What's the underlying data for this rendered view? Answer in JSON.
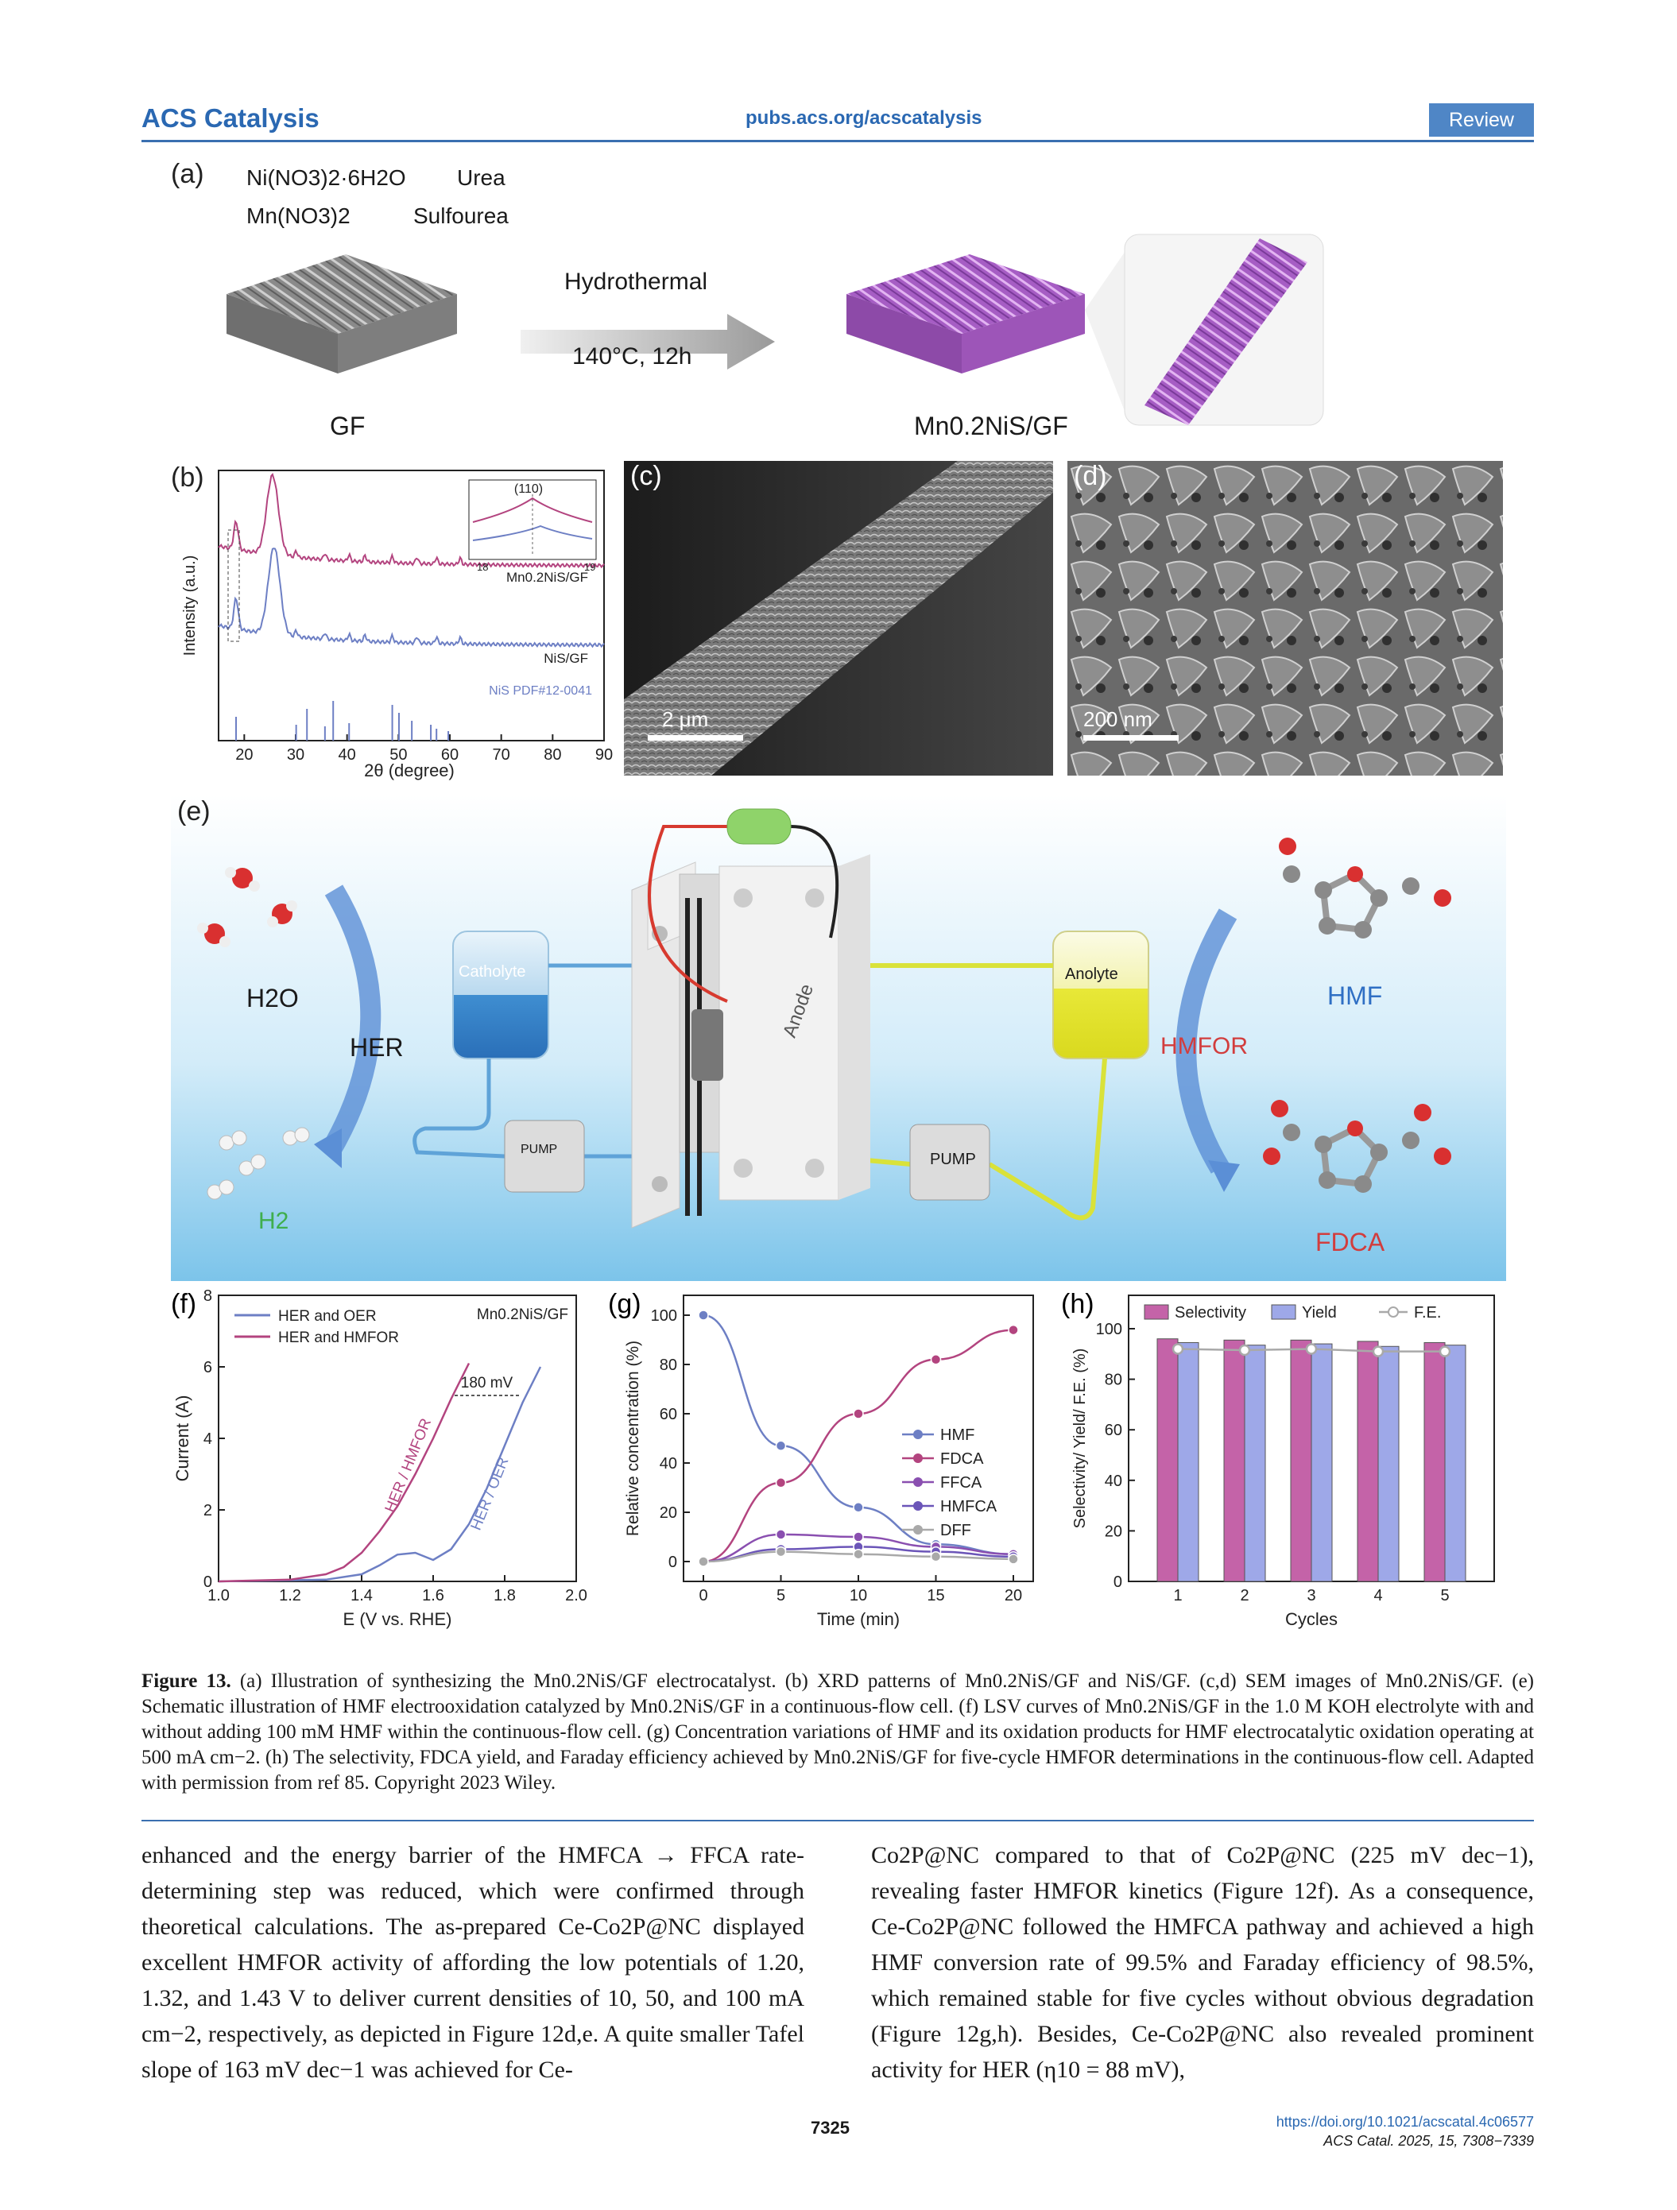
{
  "header": {
    "journal": "ACS Catalysis",
    "url": "pubs.acs.org/acscatalysis",
    "section": "Review"
  },
  "figure": {
    "panel_a": {
      "label": "(a)",
      "reagent_1": "Ni(NO3)2·6H2O",
      "reagent_2": "Mn(NO3)2",
      "reagent_3": "Urea",
      "reagent_4": "Sulfourea",
      "process": "Hydrothermal",
      "conditions": "140°C, 12h",
      "left_label": "GF",
      "right_label": "Mn0.2NiS/GF"
    },
    "panel_b": {
      "label": "(b)",
      "inset_peak": "(110)",
      "inset_tick_left": "18",
      "inset_tick_right": "19",
      "trace_1": "Mn0.2NiS/GF",
      "trace_2": "NiS/GF",
      "reference": "NiS PDF#12-0041"
    },
    "panel_c": {
      "label": "(c)",
      "scale": "2 μm"
    },
    "panel_d": {
      "label": "(d)",
      "scale": "200 nm"
    },
    "panel_e": {
      "label": "(e)",
      "h2o": "H2O",
      "her": "HER",
      "h2": "H2",
      "catholyte": "Catholyte",
      "pump": "PUMP",
      "anode": "Anode",
      "anolyte": "Anolyte",
      "hmfor": "HMFOR",
      "hmf": "HMF",
      "fdca": "FDCA"
    }
  },
  "chart_data": [
    {
      "id": "b",
      "type": "line",
      "xlabel": "2θ (degree)",
      "ylabel": "Intensity (a.u.)",
      "xlim": [
        15,
        90
      ],
      "xticks": [
        20,
        30,
        40,
        50,
        60,
        70,
        80,
        90
      ],
      "series": [
        {
          "name": "Mn0.2NiS/GF",
          "color": "#b3447f"
        },
        {
          "name": "NiS/GF",
          "color": "#6d7fc4"
        }
      ],
      "reference_peaks": [
        18.4,
        30.1,
        32.2,
        35.7,
        37.3,
        40.4,
        48.8,
        50.1,
        52.6,
        56.3,
        57.4,
        59.7
      ]
    },
    {
      "id": "f",
      "type": "line",
      "title": "Mn0.2NiS/GF",
      "xlabel": "E (V vs. RHE)",
      "ylabel": "Current (A)",
      "xlim": [
        1.0,
        2.0
      ],
      "ylim": [
        0,
        8
      ],
      "xticks": [
        1.0,
        1.2,
        1.4,
        1.6,
        1.8,
        2.0
      ],
      "yticks": [
        0,
        2,
        4,
        6,
        8
      ],
      "annotation": "180 mV",
      "series": [
        {
          "name": "HER and OER",
          "label": "HER / OER",
          "color": "#6d7fc4",
          "x": [
            1.0,
            1.3,
            1.4,
            1.45,
            1.5,
            1.55,
            1.6,
            1.65,
            1.7,
            1.75,
            1.8,
            1.85,
            1.9
          ],
          "y": [
            0.0,
            0.05,
            0.2,
            0.45,
            0.75,
            0.8,
            0.6,
            0.9,
            1.6,
            2.6,
            3.8,
            5.0,
            6.0
          ]
        },
        {
          "name": "HER and HMFOR",
          "label": "HER / HMFOR",
          "color": "#b3447f",
          "x": [
            1.0,
            1.2,
            1.3,
            1.35,
            1.4,
            1.45,
            1.5,
            1.55,
            1.6,
            1.65,
            1.7
          ],
          "y": [
            0.0,
            0.05,
            0.2,
            0.4,
            0.8,
            1.4,
            2.1,
            3.0,
            4.0,
            5.1,
            6.1
          ]
        }
      ]
    },
    {
      "id": "g",
      "type": "line",
      "xlabel": "Time (min)",
      "ylabel": "Relative concentration (%)",
      "xlim": [
        0,
        20
      ],
      "ylim": [
        0,
        100
      ],
      "xticks": [
        0,
        5,
        10,
        15,
        20
      ],
      "yticks": [
        0,
        20,
        40,
        60,
        80,
        100
      ],
      "x": [
        0,
        5,
        10,
        15,
        20
      ],
      "series": [
        {
          "name": "HMF",
          "color": "#6d7fc4",
          "values": [
            100,
            47,
            22,
            7,
            3
          ]
        },
        {
          "name": "FDCA",
          "color": "#b3447f",
          "values": [
            0,
            32,
            60,
            82,
            94
          ]
        },
        {
          "name": "FFCA",
          "color": "#8a4fb0",
          "values": [
            0,
            11,
            10,
            6,
            3
          ]
        },
        {
          "name": "HMFCA",
          "color": "#6b55b8",
          "values": [
            0,
            5,
            6,
            4,
            2
          ]
        },
        {
          "name": "DFF",
          "color": "#a9a9a9",
          "values": [
            0,
            4,
            3,
            2,
            1
          ]
        }
      ]
    },
    {
      "id": "h",
      "type": "bar",
      "xlabel": "Cycles",
      "ylabel": "Selectivity/ Yield/ F.E. (%)",
      "ylim": [
        0,
        100
      ],
      "yticks": [
        0,
        20,
        40,
        60,
        80,
        100
      ],
      "categories": [
        "1",
        "2",
        "3",
        "4",
        "5"
      ],
      "series": [
        {
          "name": "Selectivity",
          "color": "#c463a8",
          "values": [
            96,
            95.5,
            95.5,
            95,
            94.5
          ]
        },
        {
          "name": "Yield",
          "color": "#9ea8e8",
          "values": [
            94.5,
            93.5,
            94,
            93,
            93.5
          ]
        },
        {
          "name": "F.E.",
          "color": "#a9a9a9",
          "values": [
            92,
            91.5,
            92,
            91,
            91
          ]
        }
      ]
    }
  ],
  "caption": {
    "label": "Figure 13.",
    "text": "(a) Illustration of synthesizing the Mn0.2NiS/GF electrocatalyst. (b) XRD patterns of Mn0.2NiS/GF and NiS/GF. (c,d) SEM images of Mn0.2NiS/GF. (e) Schematic illustration of HMF electrooxidation catalyzed by Mn0.2NiS/GF in a continuous-flow cell. (f) LSV curves of Mn0.2NiS/GF in the 1.0 M KOH electrolyte with and without adding 100 mM HMF within the continuous-flow cell. (g) Concentration variations of HMF and its oxidation products for HMF electrocatalytic oxidation operating at 500 mA cm−2. (h) The selectivity, FDCA yield, and Faraday efficiency achieved by Mn0.2NiS/GF for five-cycle HMFOR determinations in the continuous-flow cell. Adapted with permission from ref 85. Copyright 2023 Wiley."
  },
  "body": {
    "left": "enhanced and the energy barrier of the HMFCA → FFCA rate-determining step was reduced, which were confirmed through theoretical calculations. The as-prepared Ce-Co2P@NC displayed excellent HMFOR activity of affording the low potentials of 1.20, 1.32, and 1.43 V to deliver current densities of 10, 50, and 100 mA cm−2, respectively, as depicted in Figure 12d,e. A quite smaller Tafel slope of 163 mV dec−1 was achieved for Ce-",
    "right": "Co2P@NC compared to that of Co2P@NC (225 mV dec−1), revealing faster HMFOR kinetics (Figure 12f). As a consequence, Ce-Co2P@NC followed the HMFCA pathway and achieved a high HMF conversion rate of 99.5% and Faraday efficiency of 98.5%, which remained stable for five cycles without obvious degradation (Figure 12g,h). Besides, Ce-Co2P@NC also revealed prominent activity for HER (η10 = 88 mV),"
  },
  "footer": {
    "page": "7325",
    "doi": "https://doi.org/10.1021/acscatal.4c06577",
    "citation": "ACS Catal. 2025, 15, 7308−7339"
  }
}
